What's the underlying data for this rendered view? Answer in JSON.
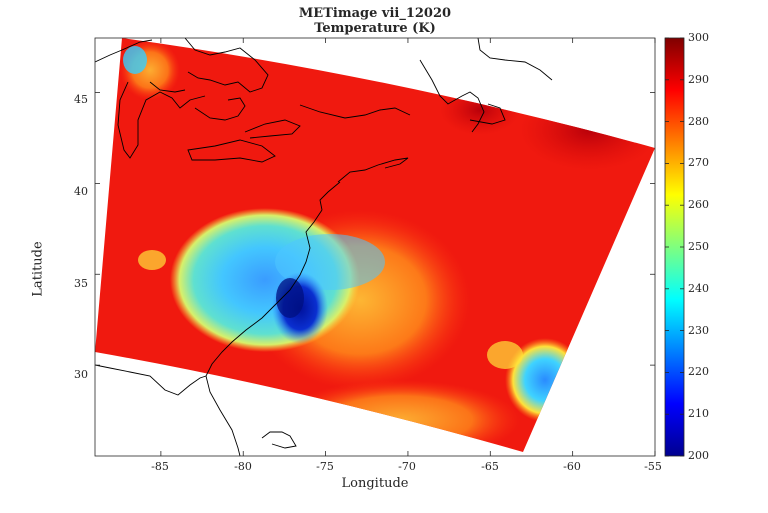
{
  "title": "METimage vii_12020",
  "subtitle": "Temperature (K)",
  "xlabel": "Longitude",
  "ylabel": "Latitude",
  "chart_data": {
    "type": "heatmap",
    "title": "METimage vii_12020",
    "subtitle": "Temperature (K)",
    "xlabel": "Longitude",
    "ylabel": "Latitude",
    "xlim": [
      -89,
      -55
    ],
    "ylim": [
      25,
      48
    ],
    "x_ticks": [
      "-85",
      "-80",
      "-75",
      "-70",
      "-65",
      "-60",
      "-55"
    ],
    "y_ticks": [
      "30",
      "35",
      "40",
      "45"
    ],
    "colorbar": {
      "min": 200,
      "max": 300,
      "ticks": [
        "200",
        "210",
        "220",
        "230",
        "240",
        "250",
        "260",
        "270",
        "280",
        "290",
        "300"
      ],
      "colormap": "jet"
    },
    "swath_corners_lonlat": [
      [
        -88.2,
        48.2
      ],
      [
        -54.8,
        42.3
      ],
      [
        -63.0,
        26.0
      ],
      [
        -89.0,
        31.0
      ]
    ],
    "features": [
      {
        "kind": "cold cloud core",
        "center": [
          -76.6,
          33.6
        ],
        "min_value": 200
      },
      {
        "kind": "cold cloud shield",
        "center": [
          -78.0,
          35.2
        ],
        "value_range": [
          215,
          245
        ]
      },
      {
        "kind": "clear surface background",
        "value_range": [
          280,
          295
        ]
      },
      {
        "kind": "cloud band",
        "center": [
          -58.5,
          31.0
        ],
        "value_range": [
          215,
          250
        ]
      }
    ],
    "grid": false
  }
}
